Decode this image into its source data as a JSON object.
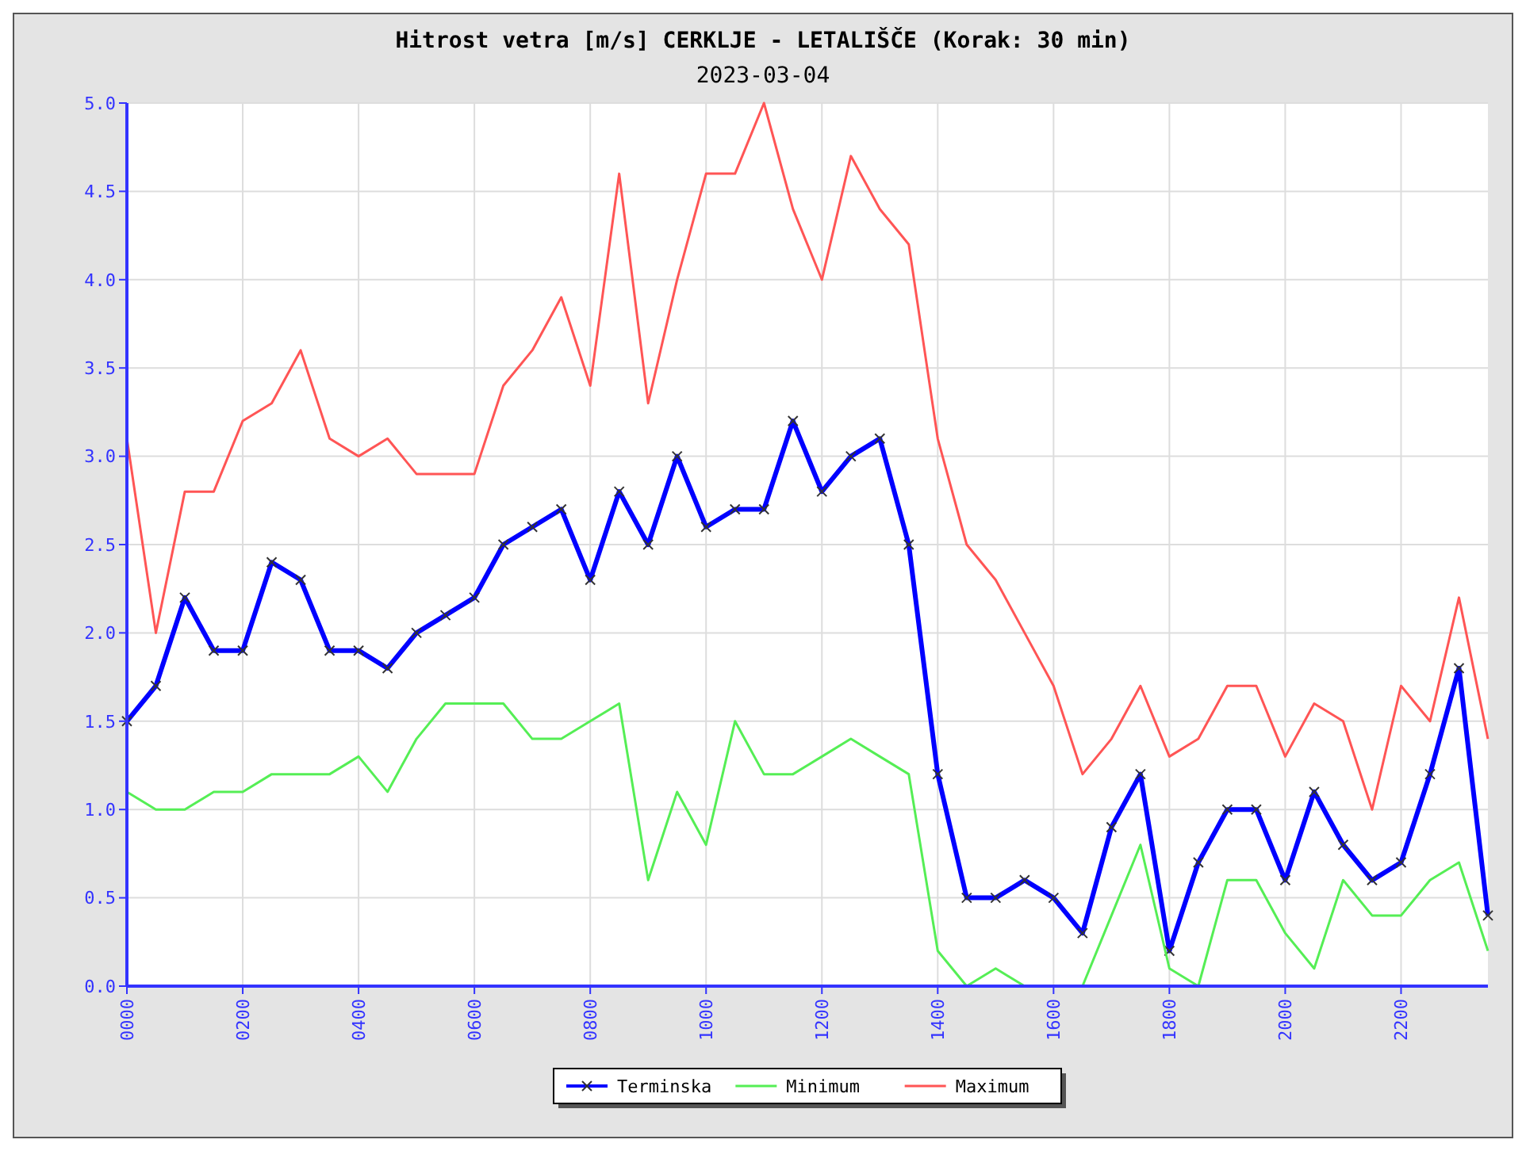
{
  "chart_data": {
    "type": "line",
    "title": "Hitrost vetra [m/s] CERKLJE - LETALIŠČE (Korak: 30 min)",
    "subtitle": "2023-03-04",
    "categories": [
      "0000",
      null,
      null,
      null,
      "0200",
      null,
      null,
      null,
      "0400",
      null,
      null,
      null,
      "0600",
      null,
      null,
      null,
      "0800",
      null,
      null,
      null,
      "1000",
      null,
      null,
      null,
      "1200",
      null,
      null,
      null,
      "1400",
      null,
      null,
      null,
      "1600",
      null,
      null,
      null,
      "1800",
      null,
      null,
      null,
      "2000",
      null,
      null,
      null,
      "2200",
      null,
      null,
      null
    ],
    "series": [
      {
        "name": "Terminska",
        "color": "#0000ff",
        "marker": "cross",
        "values": [
          1.5,
          1.7,
          2.2,
          1.9,
          1.9,
          2.4,
          2.3,
          1.9,
          1.9,
          1.8,
          2.0,
          2.1,
          2.2,
          2.5,
          2.6,
          2.7,
          2.3,
          2.8,
          2.5,
          3.0,
          2.6,
          2.7,
          2.7,
          3.2,
          2.8,
          3.0,
          3.1,
          2.5,
          1.2,
          0.5,
          0.5,
          0.6,
          0.5,
          0.3,
          0.9,
          1.2,
          0.2,
          0.7,
          1.0,
          1.0,
          0.6,
          1.1,
          0.8,
          0.6,
          0.7,
          1.2,
          1.8,
          0.4
        ]
      },
      {
        "name": "Minimum",
        "color": "#55ee55",
        "values": [
          1.1,
          1.0,
          1.0,
          1.1,
          1.1,
          1.2,
          1.2,
          1.2,
          1.3,
          1.1,
          1.4,
          1.6,
          1.6,
          1.6,
          1.4,
          1.4,
          1.5,
          1.6,
          0.6,
          1.1,
          0.8,
          1.5,
          1.2,
          1.2,
          1.3,
          1.4,
          1.3,
          1.2,
          0.2,
          0.0,
          0.1,
          0.0,
          0.0,
          0.0,
          0.4,
          0.8,
          0.1,
          0.0,
          0.6,
          0.6,
          0.3,
          0.1,
          0.6,
          0.4,
          0.4,
          0.6,
          0.7,
          0.2
        ]
      },
      {
        "name": "Maximum",
        "color": "#ff5555",
        "values": [
          3.1,
          2.0,
          2.8,
          2.8,
          3.2,
          3.3,
          3.6,
          3.1,
          3.0,
          3.1,
          2.9,
          2.9,
          2.9,
          3.4,
          3.6,
          3.9,
          3.4,
          4.6,
          3.3,
          4.0,
          4.6,
          4.6,
          5.0,
          4.4,
          4.0,
          4.7,
          4.4,
          4.2,
          3.1,
          2.5,
          2.3,
          2.0,
          1.7,
          1.2,
          1.4,
          1.7,
          1.3,
          1.4,
          1.7,
          1.7,
          1.3,
          1.6,
          1.5,
          1.0,
          1.7,
          1.5,
          2.2,
          1.4
        ]
      }
    ],
    "ylim": [
      0,
      5
    ],
    "yticks": [
      {
        "value": 0,
        "label": "0.0"
      },
      0.5,
      {
        "value": 1,
        "label": "1.0"
      },
      1.5,
      {
        "value": 2,
        "label": "2.0"
      },
      2.5,
      {
        "value": 3,
        "label": "3.0"
      },
      3.5,
      {
        "value": 4,
        "label": "4.0"
      },
      4.5,
      {
        "value": 5,
        "label": "5.0"
      }
    ],
    "grid": true,
    "legend": "bottom"
  }
}
